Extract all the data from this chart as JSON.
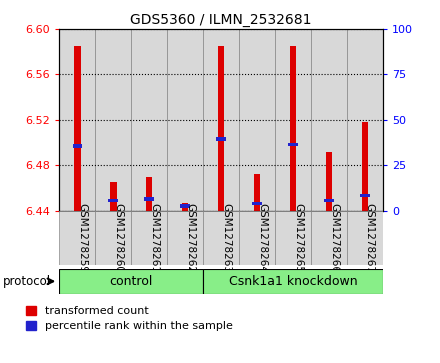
{
  "title": "GDS5360 / ILMN_2532681",
  "samples": [
    "GSM1278259",
    "GSM1278260",
    "GSM1278261",
    "GSM1278262",
    "GSM1278263",
    "GSM1278264",
    "GSM1278265",
    "GSM1278266",
    "GSM1278267"
  ],
  "red_values": [
    6.585,
    6.465,
    6.47,
    6.447,
    6.585,
    6.472,
    6.585,
    6.492,
    6.518
  ],
  "blue_values": [
    6.497,
    6.449,
    6.45,
    6.444,
    6.503,
    6.446,
    6.498,
    6.449,
    6.453
  ],
  "bar_base": 6.44,
  "ylim": [
    6.44,
    6.6
  ],
  "y2lim": [
    0,
    100
  ],
  "yticks": [
    6.44,
    6.48,
    6.52,
    6.56,
    6.6
  ],
  "y2ticks": [
    0,
    25,
    50,
    75,
    100
  ],
  "red_color": "#dd0000",
  "blue_color": "#2222cc",
  "bar_width": 0.18,
  "n_control": 4,
  "n_knockdown": 5,
  "control_label": "control",
  "knockdown_label": "Csnk1a1 knockdown",
  "protocol_label": "protocol",
  "group_color": "#88ee88",
  "panel_color": "#d8d8d8",
  "legend_red": "transformed count",
  "legend_blue": "percentile rank within the sample",
  "title_fontsize": 10,
  "tick_fontsize": 8,
  "xlabel_fontsize": 7.5
}
